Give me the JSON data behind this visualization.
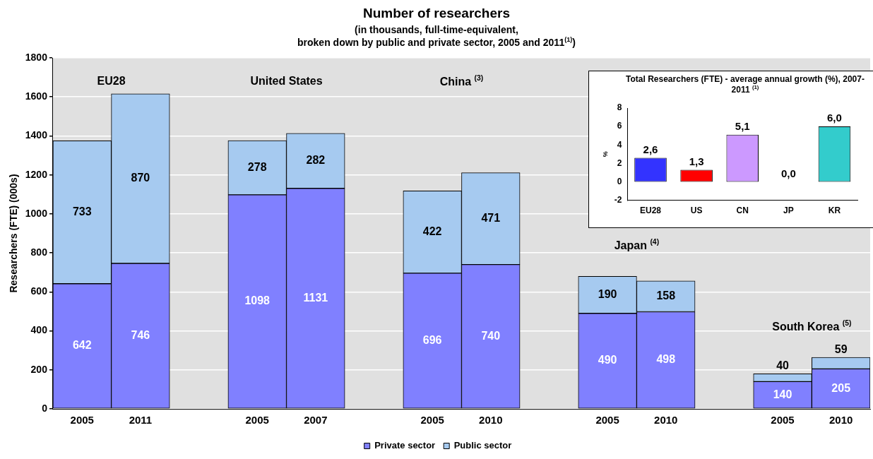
{
  "chart_data": [
    {
      "type": "bar",
      "title": "Number of researchers",
      "subtitle": "(in thousands,  full-time-equivalent,\nbroken down by public and private sector, 2005 and 2011$^{(1)}$)",
      "ylabel": "Researchers (FTE) (000s)",
      "categories": [
        "2005",
        "2011",
        null,
        "2005",
        "2007",
        null,
        "2005",
        "2010",
        null,
        "2005",
        "2010",
        null,
        "2005",
        "2010"
      ],
      "series": [
        {
          "name": "Private sector",
          "color": "#8080ff",
          "values": [
            642,
            746,
            null,
            1098,
            1131,
            null,
            696,
            740,
            null,
            490,
            498,
            null,
            140,
            205
          ]
        },
        {
          "name": "Public sector",
          "color": "#a6caf0",
          "values": [
            733,
            870,
            null,
            278,
            282,
            null,
            422,
            471,
            null,
            190,
            158,
            null,
            40,
            59
          ]
        }
      ],
      "stacked": true,
      "data_labels": true,
      "ylim": [
        0,
        1800
      ],
      "yticks": [
        0,
        200,
        400,
        600,
        800,
        1000,
        1200,
        1400,
        1600,
        1800
      ],
      "grid": "y",
      "legend": "bottom",
      "annotations": [
        "EU28",
        "United States",
        "China $^{(3)}$",
        "Japan $^{(4)}$",
        "South Korea $^{(5)}$"
      ]
    },
    {
      "type": "bar",
      "title": "Total Researchers (FTE) - average annual growth (%), 2007-2011 $^{(1)}$",
      "ylabel": "%",
      "categories": [
        "EU28",
        "US",
        "CN",
        "JP",
        "KR"
      ],
      "values": [
        2.6,
        1.3,
        5.1,
        0.0,
        6.0
      ],
      "colors": [
        "#3333ff",
        "#ff0000",
        "#cc99ff",
        "#99cc00",
        "#33cccc"
      ],
      "value_labels": [
        "2,6",
        "1,3",
        "5,1",
        "0,0",
        "6,0"
      ],
      "ylim": [
        -2,
        8
      ],
      "yticks": [
        -2,
        0,
        2,
        4,
        6,
        8
      ],
      "grid": false,
      "legend": false
    }
  ]
}
